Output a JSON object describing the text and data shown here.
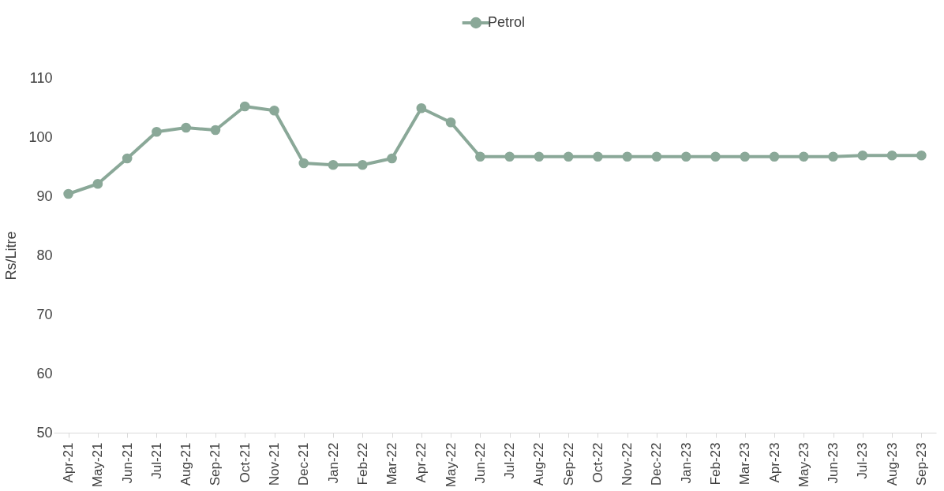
{
  "chart_data": {
    "type": "line",
    "ylabel": "Rs/Litre",
    "categories": [
      "Apr-21",
      "May-21",
      "Jun-21",
      "Jul-21",
      "Aug-21",
      "Sep-21",
      "Oct-21",
      "Nov-21",
      "Dec-21",
      "Jan-22",
      "Feb-22",
      "Mar-22",
      "Apr-22",
      "May-22",
      "Jun-22",
      "Jul-22",
      "Aug-22",
      "Sep-22",
      "Oct-22",
      "Nov-22",
      "Dec-22",
      "Jan-23",
      "Feb-23",
      "Mar-23",
      "Apr-23",
      "May-23",
      "Jun-23",
      "Jul-23",
      "Aug-23",
      "Sep-23"
    ],
    "series": [
      {
        "name": "Petrol",
        "color": "#8aa898",
        "values": [
          90.4,
          92.1,
          96.4,
          100.9,
          101.6,
          101.2,
          105.2,
          104.5,
          95.6,
          95.3,
          95.3,
          96.4,
          104.9,
          102.5,
          96.7,
          96.7,
          96.7,
          96.7,
          96.7,
          96.7,
          96.7,
          96.7,
          96.7,
          96.7,
          96.7,
          96.7,
          96.7,
          96.9,
          96.9,
          96.9
        ]
      }
    ],
    "ylim": [
      50,
      110
    ],
    "yticks": [
      50,
      60,
      70,
      80,
      90,
      100,
      110
    ],
    "grid": false,
    "legend": "top",
    "marker": "circle",
    "line_style": "solid"
  }
}
